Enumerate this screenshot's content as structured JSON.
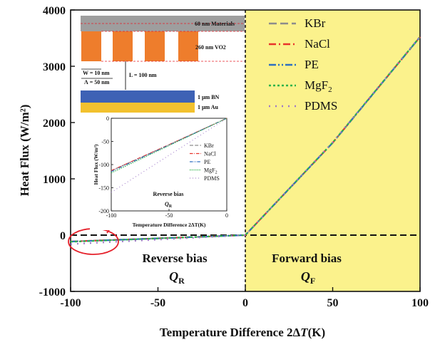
{
  "chart_data": {
    "type": "line",
    "title": "",
    "xlabel_prefix": "Temperature Difference 2Δ",
    "xlabel_var": "T",
    "xlabel_unit": "(K)",
    "ylabel": "Heat Flux (W/m²)",
    "xlim": [
      -100,
      100
    ],
    "ylim": [
      -1000,
      4000
    ],
    "x_ticks": [
      "-100",
      "-50",
      "0",
      "50",
      "100"
    ],
    "y_ticks": [
      "-1000",
      "0",
      "1000",
      "2000",
      "3000",
      "4000"
    ],
    "reference_line_y": 0,
    "x": [
      -100,
      -50,
      0,
      50,
      100
    ],
    "series": [
      {
        "name": "KBr",
        "color": "#8c8c8c",
        "dash": "dash",
        "values": [
          -113,
          -57,
          0,
          1640,
          3520
        ]
      },
      {
        "name": "NaCl",
        "color": "#e8332b",
        "dash": "dashdot",
        "values": [
          -113,
          -57,
          0,
          1640,
          3520
        ]
      },
      {
        "name": "PE",
        "color": "#2e6fc0",
        "dash": "dashdotdot",
        "values": [
          -115,
          -58,
          0,
          1640,
          3520
        ]
      },
      {
        "name": "MgF2",
        "color": "#2db34a",
        "dash": "dot",
        "values": [
          -118,
          -59,
          0,
          1645,
          3525
        ]
      },
      {
        "name": "PDMS",
        "color": "#a07ac8",
        "dash": "sparsedot",
        "values": [
          -160,
          -80,
          0,
          1650,
          3530
        ]
      }
    ],
    "regions": {
      "reverse_label": "Reverse bias",
      "reverse_symbol": "Q",
      "reverse_sub": "R",
      "forward_label": "Forward bias",
      "forward_symbol": "Q",
      "forward_sub": "F",
      "forward_color": "#fbf28c"
    },
    "legend": {
      "placement": "top-right"
    },
    "inset": {
      "type": "line",
      "xlim": [
        -100,
        0
      ],
      "ylim": [
        -200,
        0
      ],
      "x_ticks": [
        "-100",
        "-50",
        "0"
      ],
      "y_ticks": [
        "0",
        "-50",
        "-100",
        "-150",
        "-200"
      ],
      "xlabel": "Temperature Difference 2ΔT(K)",
      "ylabel": "Heat Flux (W/m²)",
      "note": "Reverse bias",
      "note_symbol": "Q",
      "note_sub": "R",
      "legend_labels": [
        "KBr",
        "NaCl",
        "PE",
        "MgF2",
        "PDMS"
      ]
    },
    "schematic": {
      "materials_label": "60 nm Materials",
      "vo2_label": "260 nm VO2",
      "w_label": "W = 10 nm",
      "lambda_label": "Λ = 50 nm",
      "gap_label": "L = 100 nm",
      "bn_label": "1 μm BN",
      "au_label": "1 μm Au",
      "materials_color": "#9e9e9e",
      "vo2_color": "#ee7d2c",
      "bn_color": "#3e62b5",
      "au_color": "#f2c12e"
    }
  }
}
